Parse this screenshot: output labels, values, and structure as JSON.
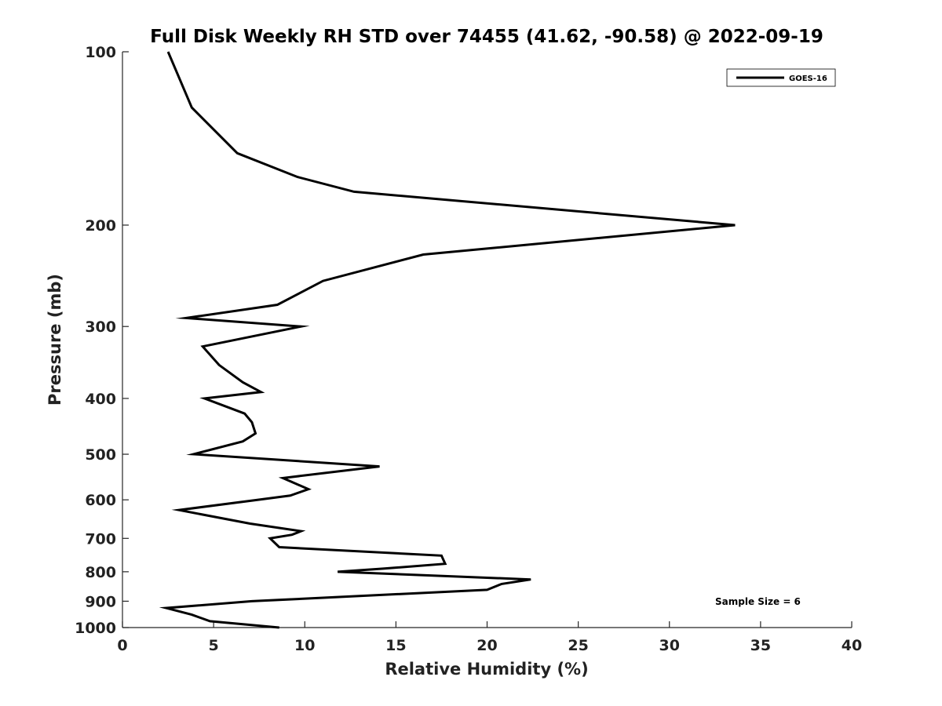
{
  "chart_data": {
    "type": "line",
    "title": "Full Disk Weekly RH STD over 74455 (41.62, -90.58) @ 2022-09-19",
    "xlabel": "Relative Humidity (%)",
    "ylabel": "Pressure (mb)",
    "xlim": [
      0,
      40
    ],
    "ylim": [
      100,
      1000
    ],
    "y_scale": "log",
    "y_inverted": true,
    "x_ticks": [
      0,
      5,
      10,
      15,
      20,
      25,
      30,
      35,
      40
    ],
    "y_ticks": [
      100,
      200,
      300,
      400,
      500,
      600,
      700,
      800,
      900,
      1000
    ],
    "grid": false,
    "legend_position": "top-right",
    "annotation": "Sample Size = 6",
    "series": [
      {
        "name": "GOES-16",
        "color": "#000000",
        "points": [
          [
            2.5,
            100
          ],
          [
            3.8,
            125
          ],
          [
            6.3,
            150
          ],
          [
            9.6,
            165
          ],
          [
            12.7,
            175
          ],
          [
            33.6,
            200
          ],
          [
            16.5,
            225
          ],
          [
            11.0,
            250
          ],
          [
            8.5,
            275
          ],
          [
            3.5,
            290
          ],
          [
            9.8,
            300
          ],
          [
            4.4,
            325
          ],
          [
            5.3,
            350
          ],
          [
            6.6,
            375
          ],
          [
            7.6,
            390
          ],
          [
            4.5,
            400
          ],
          [
            6.7,
            425
          ],
          [
            7.1,
            440
          ],
          [
            7.3,
            460
          ],
          [
            6.6,
            475
          ],
          [
            3.9,
            500
          ],
          [
            14.1,
            525
          ],
          [
            8.8,
            550
          ],
          [
            10.2,
            575
          ],
          [
            9.2,
            590
          ],
          [
            7.4,
            600
          ],
          [
            3.1,
            625
          ],
          [
            7.0,
            660
          ],
          [
            9.8,
            680
          ],
          [
            9.3,
            690
          ],
          [
            8.1,
            700
          ],
          [
            8.6,
            725
          ],
          [
            17.5,
            750
          ],
          [
            17.7,
            775
          ],
          [
            14.3,
            790
          ],
          [
            11.8,
            800
          ],
          [
            22.4,
            825
          ],
          [
            20.8,
            840
          ],
          [
            20.0,
            860
          ],
          [
            7.1,
            900
          ],
          [
            2.4,
            925
          ],
          [
            3.8,
            950
          ],
          [
            4.8,
            975
          ],
          [
            8.6,
            1000
          ]
        ]
      }
    ]
  }
}
